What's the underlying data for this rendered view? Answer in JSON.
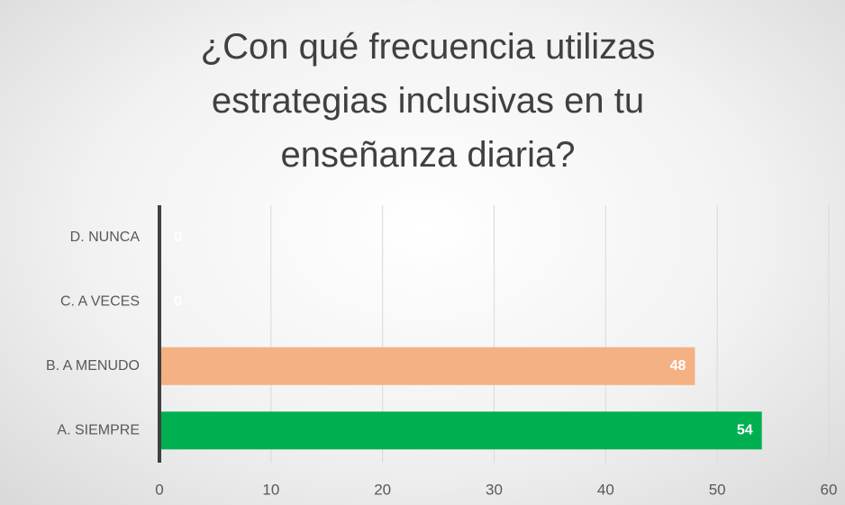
{
  "chart_data": {
    "type": "bar",
    "orientation": "horizontal",
    "title": "¿Con qué frecuencia utilizas estrategias inclusivas en tu enseñanza diaria?",
    "categories": [
      "D. NUNCA",
      "C. A VECES",
      "B. A MENUDO",
      "A. SIEMPRE"
    ],
    "values": [
      0,
      0,
      48,
      54
    ],
    "colors": [
      "#5b9bd5",
      "#ffc000",
      "#f4b183",
      "#00b050"
    ],
    "xlim": [
      0,
      60
    ],
    "xticks": [
      0,
      10,
      20,
      30,
      40,
      50,
      60
    ],
    "grid": true
  }
}
